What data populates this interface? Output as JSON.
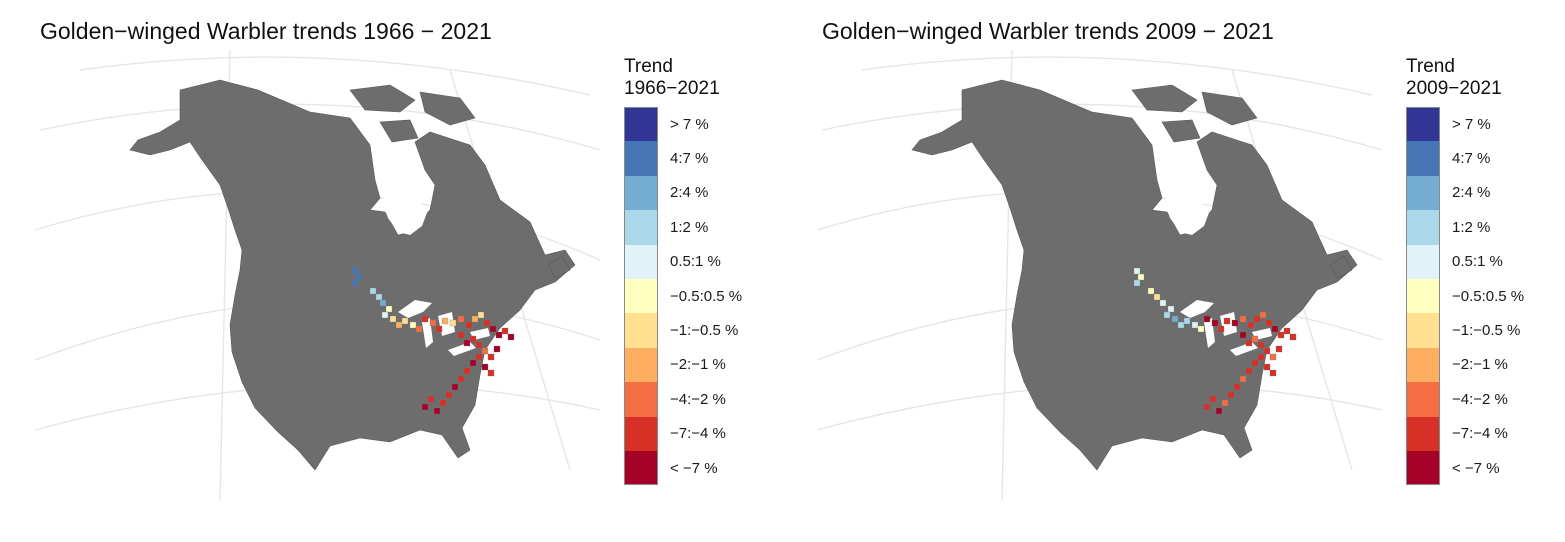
{
  "panels": [
    {
      "title": "Golden−winged Warbler trends 1966 − 2021",
      "legend_title_line1": "Trend",
      "legend_title_line2": "1966−2021"
    },
    {
      "title": "Golden−winged Warbler trends 2009 − 2021",
      "legend_title_line1": "Trend",
      "legend_title_line2": "2009−2021"
    }
  ],
  "legend_items": [
    {
      "label": "> 7 %",
      "color": "#313695"
    },
    {
      "label": "4:7 %",
      "color": "#4575b4"
    },
    {
      "label": "2:4 %",
      "color": "#74add1"
    },
    {
      "label": "1:2 %",
      "color": "#abd9e9"
    },
    {
      "label": "0.5:1 %",
      "color": "#e0f3f8"
    },
    {
      "label": "−0.5:0.5 %",
      "color": "#ffffbf"
    },
    {
      "label": "−1:−0.5 %",
      "color": "#fee090"
    },
    {
      "label": "−2:−1 %",
      "color": "#fdae61"
    },
    {
      "label": "−4:−2 %",
      "color": "#f46d43"
    },
    {
      "label": "−7:−4 %",
      "color": "#d73027"
    },
    {
      "label": "< −7 %",
      "color": "#a50026"
    }
  ],
  "map_style": {
    "land_color": "#6d6d6d",
    "grid_line_color": "#e6e6e6",
    "background_color": "#ffffff"
  }
}
